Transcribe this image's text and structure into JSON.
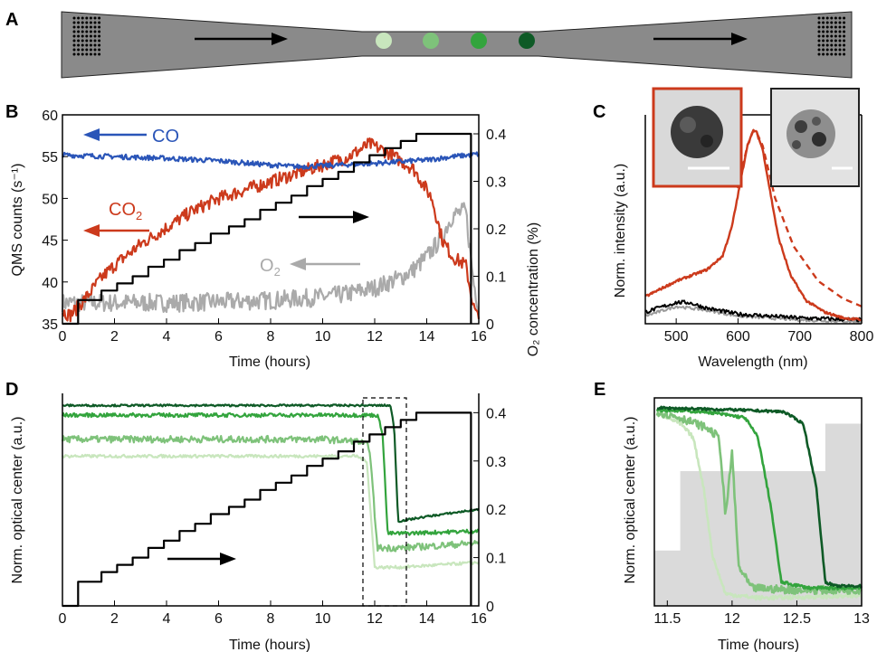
{
  "panel_labels": {
    "a": "A",
    "b": "B",
    "c": "C",
    "d": "D",
    "e": "E"
  },
  "colors": {
    "co": "#2a55b8",
    "co2": "#cc3a1c",
    "o2": "#aaaaaa",
    "step": "#000000",
    "particles": [
      "#c8e6bd",
      "#7ec27a",
      "#33a43d",
      "#0e5a26"
    ],
    "channel": "#8a8a8a",
    "pattern_bg": "#dadada"
  },
  "panel_b": {
    "xlabel": "Time (hours)",
    "ylabel_left": "QMS counts (s⁻¹)",
    "ylabel_right": "O₂ concentration (%)",
    "x_ticks": [
      "0",
      "2",
      "4",
      "6",
      "8",
      "10",
      "12",
      "14",
      "16"
    ],
    "y_ticks_left": [
      "35",
      "40",
      "45",
      "50",
      "55",
      "60"
    ],
    "y_ticks_right": [
      "0",
      "0.1",
      "0.2",
      "0.3",
      "0.4"
    ],
    "series_labels": {
      "co": "CO",
      "co2": "CO",
      "co2_sub": "2",
      "o2": "O",
      "o2_sub": "2"
    }
  },
  "panel_c": {
    "xlabel": "Wavelength (nm)",
    "ylabel": "Norm. intensity (a.u.)",
    "x_ticks": [
      "500",
      "600",
      "700",
      "800"
    ]
  },
  "panel_d": {
    "xlabel": "Time (hours)",
    "ylabel_left": "Norm. optical center (a.u.)",
    "ylabel_right": "O₂ concentration (%)",
    "x_ticks": [
      "0",
      "2",
      "4",
      "6",
      "8",
      "10",
      "12",
      "14",
      "16"
    ],
    "y_ticks_right": [
      "0",
      "0.1",
      "0.2",
      "0.3",
      "0.4"
    ]
  },
  "panel_e": {
    "xlabel": "Time (hours)",
    "ylabel": "Norm. optical center (a.u.)",
    "x_ticks": [
      "11.5",
      "12",
      "12.5",
      "13"
    ]
  },
  "chart_data": [
    {
      "panel": "B",
      "type": "line",
      "xlabel": "Time (hours)",
      "ylabel": "QMS counts (s⁻¹)",
      "xlim": [
        0,
        16
      ],
      "ylim": [
        35,
        60
      ],
      "y2lim": [
        0,
        0.44
      ],
      "series": [
        {
          "name": "CO",
          "axis": "left",
          "x": [
            0,
            2,
            4,
            6,
            8,
            9,
            10,
            12,
            14,
            15,
            16
          ],
          "y": [
            55.2,
            55.0,
            54.8,
            54.5,
            54.0,
            53.8,
            53.9,
            54.2,
            54.6,
            55.0,
            55.3
          ]
        },
        {
          "name": "CO2",
          "axis": "left",
          "x": [
            0,
            0.3,
            0.6,
            1,
            1.5,
            2,
            3,
            4,
            5,
            6,
            7,
            8,
            9,
            10,
            11,
            11.8,
            12.5,
            13.5,
            14.2,
            14.6,
            15.0,
            15.5,
            15.8,
            16
          ],
          "y": [
            36.5,
            36,
            37,
            38.5,
            40.5,
            42,
            44.5,
            46.5,
            48.5,
            50,
            51,
            52,
            53,
            54,
            55,
            56.5,
            55.5,
            53.5,
            50,
            45,
            43,
            42,
            37,
            35.5
          ]
        },
        {
          "name": "O2",
          "axis": "left",
          "x": [
            0,
            2,
            4,
            6,
            8,
            10,
            11,
            12,
            13,
            13.5,
            14,
            14.5,
            15,
            15.5,
            15.8,
            16
          ],
          "y": [
            37.5,
            37.5,
            37.5,
            37.6,
            37.8,
            38.2,
            38.6,
            39.3,
            40.5,
            41.5,
            43,
            45,
            48,
            48.5,
            40,
            37
          ]
        },
        {
          "name": "O2 concentration",
          "axis": "right",
          "x": [
            0,
            0.6,
            0.6,
            1.5,
            1.5,
            2.1,
            2.1,
            2.7,
            2.7,
            3.3,
            3.3,
            3.9,
            3.9,
            4.5,
            4.5,
            5.1,
            5.1,
            5.7,
            5.7,
            6.4,
            6.4,
            7,
            7,
            7.6,
            7.6,
            8.2,
            8.2,
            8.8,
            8.8,
            9.4,
            9.4,
            10,
            10,
            10.6,
            10.6,
            11.2,
            11.2,
            11.8,
            11.8,
            12.4,
            12.4,
            13,
            13,
            13.6,
            13.6,
            14.2,
            14.2,
            14.8,
            14.8,
            15.7,
            15.7
          ],
          "y": [
            0,
            0,
            0.05,
            0.05,
            0.07,
            0.07,
            0.085,
            0.085,
            0.1,
            0.1,
            0.12,
            0.12,
            0.135,
            0.135,
            0.155,
            0.155,
            0.17,
            0.17,
            0.19,
            0.19,
            0.205,
            0.205,
            0.22,
            0.22,
            0.24,
            0.24,
            0.255,
            0.255,
            0.27,
            0.27,
            0.29,
            0.29,
            0.305,
            0.305,
            0.32,
            0.32,
            0.34,
            0.34,
            0.355,
            0.355,
            0.37,
            0.37,
            0.385,
            0.385,
            0.4,
            0.4,
            0.4,
            0.4,
            0.4,
            0.4,
            0
          ]
        }
      ]
    },
    {
      "panel": "C",
      "type": "line",
      "xlabel": "Wavelength (nm)",
      "ylabel": "Norm. intensity (a.u.)",
      "xlim": [
        450,
        800
      ],
      "ylim": [
        0,
        1.08
      ],
      "series": [
        {
          "style": "solid red",
          "x": [
            450,
            500,
            550,
            575,
            590,
            605,
            615,
            625,
            630,
            640,
            650,
            665,
            685,
            710,
            740,
            770,
            800
          ],
          "y": [
            0.14,
            0.22,
            0.28,
            0.35,
            0.5,
            0.75,
            0.92,
            1.0,
            0.99,
            0.9,
            0.72,
            0.45,
            0.25,
            0.12,
            0.06,
            0.03,
            0.02
          ]
        },
        {
          "style": "dashed red",
          "x": [
            600,
            615,
            625,
            630,
            640,
            660,
            690,
            730,
            770,
            800
          ],
          "y": [
            0.7,
            0.92,
            1.0,
            0.99,
            0.92,
            0.65,
            0.4,
            0.22,
            0.13,
            0.09
          ]
        },
        {
          "style": "solid black",
          "x": [
            450,
            480,
            500,
            520,
            550,
            600,
            700,
            800
          ],
          "y": [
            0.06,
            0.09,
            0.11,
            0.11,
            0.08,
            0.05,
            0.03,
            0.02
          ]
        },
        {
          "style": "solid gray",
          "x": [
            450,
            500,
            550,
            600,
            700,
            800
          ],
          "y": [
            0.04,
            0.09,
            0.07,
            0.04,
            0.02,
            0.01
          ]
        }
      ]
    },
    {
      "panel": "D",
      "type": "line",
      "xlabel": "Time (hours)",
      "ylabel": "Norm. optical center (a.u.)",
      "xlim": [
        0,
        16
      ],
      "ylim": [
        0,
        0.44
      ],
      "series": [
        {
          "particle": 1,
          "color": "#c8e6bd",
          "x": [
            0,
            6,
            10,
            11.3,
            11.7,
            12.0,
            13,
            16
          ],
          "y": [
            0.31,
            0.31,
            0.31,
            0.31,
            0.3,
            0.08,
            0.08,
            0.09
          ]
        },
        {
          "particle": 2,
          "color": "#7ec27a",
          "x": [
            0,
            6,
            10,
            11.4,
            11.8,
            12.1,
            13,
            16
          ],
          "y": [
            0.345,
            0.345,
            0.345,
            0.34,
            0.33,
            0.12,
            0.12,
            0.13
          ]
        },
        {
          "particle": 3,
          "color": "#33a43d",
          "x": [
            0,
            6,
            10,
            12.1,
            12.3,
            12.5,
            13,
            16
          ],
          "y": [
            0.395,
            0.395,
            0.395,
            0.395,
            0.36,
            0.15,
            0.15,
            0.155
          ]
        },
        {
          "particle": 4,
          "color": "#0e5a26",
          "x": [
            0,
            6,
            10,
            12.6,
            12.75,
            12.9,
            14,
            16
          ],
          "y": [
            0.415,
            0.415,
            0.415,
            0.415,
            0.37,
            0.175,
            0.185,
            0.2
          ]
        },
        {
          "name": "O2 concentration",
          "color": "#000000",
          "x": [
            0,
            0.6,
            0.6,
            1.5,
            1.5,
            2.1,
            2.1,
            2.7,
            2.7,
            3.3,
            3.3,
            3.9,
            3.9,
            4.5,
            4.5,
            5.1,
            5.1,
            5.7,
            5.7,
            6.4,
            6.4,
            7,
            7,
            7.6,
            7.6,
            8.2,
            8.2,
            8.8,
            8.8,
            9.4,
            9.4,
            10,
            10,
            10.6,
            10.6,
            11.2,
            11.2,
            11.8,
            11.8,
            12.4,
            12.4,
            13,
            13,
            13.6,
            13.6,
            14.2,
            14.2,
            14.8,
            14.8,
            15.7,
            15.7
          ],
          "y": [
            0,
            0,
            0.05,
            0.05,
            0.07,
            0.07,
            0.085,
            0.085,
            0.1,
            0.1,
            0.12,
            0.12,
            0.135,
            0.135,
            0.155,
            0.155,
            0.17,
            0.17,
            0.19,
            0.19,
            0.205,
            0.205,
            0.22,
            0.22,
            0.24,
            0.24,
            0.255,
            0.255,
            0.27,
            0.27,
            0.29,
            0.29,
            0.305,
            0.305,
            0.32,
            0.32,
            0.34,
            0.34,
            0.355,
            0.355,
            0.37,
            0.37,
            0.385,
            0.385,
            0.4,
            0.4,
            0.4,
            0.4,
            0.4,
            0.4,
            0
          ]
        }
      ],
      "zoom_window": [
        11.4,
        13.0
      ]
    },
    {
      "panel": "E",
      "type": "line",
      "xlabel": "Time (hours)",
      "ylabel": "Norm. optical center (a.u.)",
      "xlim": [
        11.4,
        13.0
      ],
      "ylim": [
        0,
        1.05
      ],
      "o2_background": {
        "x": [
          11.4,
          11.6,
          11.6,
          12.52,
          12.52,
          12.72,
          12.72,
          13.0
        ],
        "y": [
          0.28,
          0.28,
          0.68,
          0.68,
          0.68,
          0.68,
          0.92,
          0.92
        ]
      },
      "series": [
        {
          "particle": 1,
          "color": "#c8e6bd",
          "x": [
            11.42,
            11.6,
            11.7,
            11.78,
            11.85,
            11.95,
            12.2,
            13.0
          ],
          "y": [
            0.98,
            0.92,
            0.85,
            0.6,
            0.25,
            0.06,
            0.04,
            0.05
          ]
        },
        {
          "particle": 2,
          "color": "#7ec27a",
          "x": [
            11.42,
            11.6,
            11.8,
            11.9,
            11.95,
            12.0,
            12.05,
            12.15,
            12.5,
            13.0
          ],
          "y": [
            0.98,
            0.95,
            0.9,
            0.85,
            0.45,
            0.78,
            0.2,
            0.09,
            0.08,
            0.08
          ]
        },
        {
          "particle": 3,
          "color": "#33a43d",
          "x": [
            11.42,
            11.8,
            12.1,
            12.2,
            12.3,
            12.38,
            12.6,
            13.0
          ],
          "y": [
            0.99,
            0.98,
            0.95,
            0.85,
            0.5,
            0.12,
            0.09,
            0.09
          ]
        },
        {
          "particle": 4,
          "color": "#0e5a26",
          "x": [
            11.42,
            12.0,
            12.4,
            12.55,
            12.65,
            12.72,
            12.8,
            13.0
          ],
          "y": [
            1.0,
            0.99,
            0.98,
            0.92,
            0.6,
            0.12,
            0.1,
            0.1
          ]
        }
      ]
    }
  ]
}
